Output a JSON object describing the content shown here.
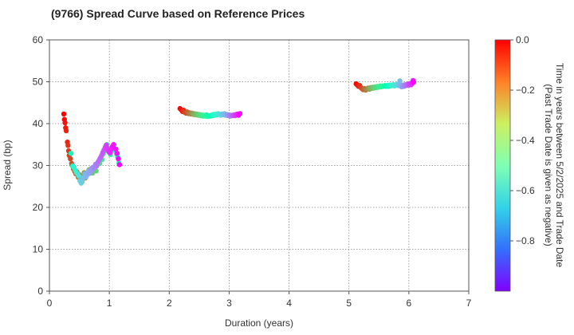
{
  "chart_data": {
    "type": "scatter",
    "title": "(9766)   Spread Curve based on Reference Prices",
    "xlabel": "Duration (years)",
    "ylabel": "Spread (bp)",
    "xlim": [
      0,
      7
    ],
    "ylim": [
      0,
      60
    ],
    "x_ticks": [
      "0",
      "1",
      "2",
      "3",
      "4",
      "5",
      "6",
      "7"
    ],
    "y_ticks": [
      "0",
      "10",
      "20",
      "30",
      "40",
      "50",
      "60"
    ],
    "grid": true,
    "colorbar": {
      "label_line1": "Time in years between 5/2/2025 and Trade Date",
      "label_line2": "(Past Trade Date is given as negative)",
      "range": [
        -1.0,
        0.0
      ],
      "ticks": [
        "0.0",
        "−0.2",
        "−0.4",
        "−0.6",
        "−0.8"
      ],
      "colormap": "rainbow"
    },
    "series": [
      {
        "points": [
          [
            0.24,
            42.3,
            0.0
          ],
          [
            0.25,
            41.0,
            -0.01
          ],
          [
            0.26,
            40.2,
            -0.02
          ],
          [
            0.27,
            39.0,
            -0.03
          ],
          [
            0.28,
            38.3,
            -0.04
          ],
          [
            0.3,
            35.6,
            -0.05
          ],
          [
            0.31,
            34.8,
            -0.06
          ],
          [
            0.32,
            33.5,
            -0.07
          ],
          [
            0.33,
            32.4,
            -0.08
          ],
          [
            0.35,
            31.6,
            -0.09
          ],
          [
            0.37,
            30.5,
            -0.1
          ],
          [
            0.38,
            30.0,
            -0.11
          ],
          [
            0.4,
            29.2,
            -0.12
          ],
          [
            0.42,
            28.6,
            -0.13
          ],
          [
            0.44,
            28.0,
            -0.14
          ],
          [
            0.46,
            28.5,
            -0.15
          ],
          [
            0.48,
            27.2,
            -0.16
          ],
          [
            0.5,
            27.8,
            -0.17
          ],
          [
            0.52,
            26.8,
            -0.18
          ],
          [
            0.54,
            26.0,
            -0.19
          ],
          [
            0.56,
            27.5,
            -0.2
          ],
          [
            0.58,
            28.3,
            -0.21
          ],
          [
            0.6,
            27.0,
            -0.22
          ],
          [
            0.62,
            27.6,
            -0.23
          ],
          [
            0.64,
            28.4,
            -0.24
          ],
          [
            0.66,
            29.0,
            -0.25
          ],
          [
            0.68,
            28.6,
            -0.26
          ],
          [
            0.7,
            29.3,
            -0.27
          ],
          [
            0.72,
            28.2,
            -0.28
          ],
          [
            0.74,
            29.0,
            -0.29
          ],
          [
            0.76,
            29.8,
            -0.3
          ],
          [
            0.78,
            28.7,
            -0.31
          ],
          [
            0.8,
            30.2,
            -0.32
          ],
          [
            0.82,
            31.0,
            -0.33
          ],
          [
            0.84,
            30.5,
            -0.34
          ],
          [
            0.86,
            32.0,
            -0.35
          ],
          [
            0.88,
            31.4,
            -0.36
          ],
          [
            0.9,
            32.8,
            -0.37
          ],
          [
            0.92,
            33.5,
            -0.38
          ],
          [
            0.94,
            34.6,
            -0.39
          ],
          [
            0.96,
            35.0,
            -0.4
          ],
          [
            0.98,
            33.8,
            -0.41
          ],
          [
            1.0,
            33.2,
            -0.42
          ],
          [
            1.02,
            32.6,
            -0.43
          ],
          [
            1.04,
            33.4,
            -0.44
          ],
          [
            1.06,
            34.2,
            -0.45
          ],
          [
            1.08,
            34.8,
            -0.46
          ],
          [
            1.1,
            33.6,
            -0.47
          ],
          [
            1.12,
            32.8,
            -0.48
          ],
          [
            1.14,
            32.0,
            -0.49
          ],
          [
            1.16,
            30.6,
            -0.5
          ],
          [
            0.36,
            32.9,
            -0.52
          ],
          [
            0.39,
            29.9,
            -0.55
          ],
          [
            0.41,
            29.5,
            -0.58
          ],
          [
            0.43,
            28.9,
            -0.6
          ],
          [
            0.45,
            28.3,
            -0.62
          ],
          [
            0.47,
            28.0,
            -0.64
          ],
          [
            0.49,
            27.5,
            -0.66
          ],
          [
            0.51,
            26.3,
            -0.68
          ],
          [
            0.53,
            25.8,
            -0.7
          ],
          [
            0.55,
            26.6,
            -0.72
          ],
          [
            0.57,
            27.2,
            -0.73
          ],
          [
            0.59,
            28.0,
            -0.74
          ],
          [
            0.61,
            27.3,
            -0.75
          ],
          [
            0.63,
            28.0,
            -0.76
          ],
          [
            0.65,
            28.6,
            -0.77
          ],
          [
            0.67,
            28.1,
            -0.78
          ],
          [
            0.69,
            29.2,
            -0.79
          ],
          [
            0.71,
            28.8,
            -0.8
          ],
          [
            0.73,
            29.6,
            -0.81
          ],
          [
            0.75,
            29.4,
            -0.82
          ],
          [
            0.77,
            30.3,
            -0.83
          ],
          [
            0.79,
            29.9,
            -0.84
          ],
          [
            0.81,
            30.8,
            -0.85
          ],
          [
            0.83,
            31.3,
            -0.86
          ],
          [
            0.85,
            31.8,
            -0.87
          ],
          [
            0.87,
            32.4,
            -0.88
          ],
          [
            0.89,
            33.1,
            -0.89
          ],
          [
            0.91,
            33.7,
            -0.9
          ],
          [
            0.93,
            34.3,
            -0.91
          ],
          [
            0.95,
            34.9,
            -0.92
          ],
          [
            0.97,
            34.0,
            -0.93
          ],
          [
            0.99,
            33.3,
            -0.94
          ],
          [
            1.01,
            33.0,
            -0.95
          ],
          [
            1.03,
            33.8,
            -0.96
          ],
          [
            1.05,
            34.5,
            -0.97
          ],
          [
            1.07,
            35.0,
            -0.98
          ],
          [
            1.11,
            33.9,
            -0.985
          ],
          [
            1.13,
            32.9,
            -0.99
          ],
          [
            1.15,
            31.6,
            -0.995
          ],
          [
            1.17,
            30.2,
            -1.0
          ]
        ]
      },
      {
        "points": [
          [
            2.18,
            43.6,
            0.0
          ],
          [
            2.2,
            43.3,
            -0.02
          ],
          [
            2.22,
            42.9,
            -0.04
          ],
          [
            2.24,
            43.2,
            -0.06
          ],
          [
            2.26,
            42.7,
            -0.08
          ],
          [
            2.28,
            42.5,
            -0.1
          ],
          [
            2.3,
            42.8,
            -0.12
          ],
          [
            2.32,
            42.4,
            -0.14
          ],
          [
            2.34,
            42.6,
            -0.16
          ],
          [
            2.36,
            42.3,
            -0.18
          ],
          [
            2.38,
            42.5,
            -0.2
          ],
          [
            2.4,
            42.2,
            -0.22
          ],
          [
            2.42,
            42.4,
            -0.24
          ],
          [
            2.44,
            42.1,
            -0.26
          ],
          [
            2.46,
            42.3,
            -0.28
          ],
          [
            2.48,
            42.0,
            -0.3
          ],
          [
            2.5,
            42.2,
            -0.32
          ],
          [
            2.52,
            41.9,
            -0.34
          ],
          [
            2.54,
            42.1,
            -0.36
          ],
          [
            2.56,
            41.8,
            -0.38
          ],
          [
            2.58,
            42.0,
            -0.4
          ],
          [
            2.6,
            41.8,
            -0.42
          ],
          [
            2.62,
            42.1,
            -0.44
          ],
          [
            2.64,
            41.7,
            -0.46
          ],
          [
            2.66,
            41.9,
            -0.48
          ],
          [
            2.68,
            41.8,
            -0.5
          ],
          [
            2.7,
            42.0,
            -0.52
          ],
          [
            2.72,
            41.9,
            -0.54
          ],
          [
            2.74,
            42.2,
            -0.56
          ],
          [
            2.76,
            42.0,
            -0.58
          ],
          [
            2.78,
            42.3,
            -0.6
          ],
          [
            2.8,
            42.1,
            -0.62
          ],
          [
            2.82,
            42.4,
            -0.64
          ],
          [
            2.84,
            42.2,
            -0.66
          ],
          [
            2.86,
            42.0,
            -0.68
          ],
          [
            2.88,
            42.3,
            -0.7
          ],
          [
            2.9,
            42.1,
            -0.72
          ],
          [
            2.92,
            42.4,
            -0.74
          ],
          [
            2.94,
            42.0,
            -0.76
          ],
          [
            2.96,
            42.2,
            -0.78
          ],
          [
            2.98,
            41.9,
            -0.8
          ],
          [
            3.0,
            42.1,
            -0.82
          ],
          [
            3.02,
            41.8,
            -0.84
          ],
          [
            3.04,
            42.0,
            -0.86
          ],
          [
            3.06,
            41.9,
            -0.88
          ],
          [
            3.08,
            42.1,
            -0.9
          ],
          [
            3.1,
            41.9,
            -0.92
          ],
          [
            3.12,
            42.2,
            -0.94
          ],
          [
            3.14,
            42.3,
            -0.96
          ],
          [
            3.16,
            42.0,
            -0.98
          ],
          [
            3.18,
            42.4,
            -1.0
          ]
        ]
      },
      {
        "points": [
          [
            5.12,
            49.5,
            0.0
          ],
          [
            5.14,
            49.2,
            -0.02
          ],
          [
            5.16,
            48.9,
            -0.04
          ],
          [
            5.18,
            49.1,
            -0.06
          ],
          [
            5.2,
            48.6,
            -0.08
          ],
          [
            5.22,
            48.3,
            -0.1
          ],
          [
            5.24,
            48.1,
            -0.12
          ],
          [
            5.26,
            48.4,
            -0.14
          ],
          [
            5.28,
            48.0,
            -0.16
          ],
          [
            5.3,
            48.3,
            -0.18
          ],
          [
            5.32,
            48.5,
            -0.2
          ],
          [
            5.34,
            48.2,
            -0.22
          ],
          [
            5.36,
            48.6,
            -0.24
          ],
          [
            5.38,
            48.4,
            -0.26
          ],
          [
            5.4,
            48.7,
            -0.28
          ],
          [
            5.42,
            48.5,
            -0.3
          ],
          [
            5.44,
            48.8,
            -0.32
          ],
          [
            5.46,
            48.6,
            -0.34
          ],
          [
            5.48,
            48.9,
            -0.36
          ],
          [
            5.5,
            48.7,
            -0.38
          ],
          [
            5.52,
            49.0,
            -0.4
          ],
          [
            5.54,
            48.8,
            -0.42
          ],
          [
            5.56,
            49.0,
            -0.44
          ],
          [
            5.58,
            48.9,
            -0.46
          ],
          [
            5.6,
            49.1,
            -0.48
          ],
          [
            5.62,
            48.9,
            -0.5
          ],
          [
            5.64,
            49.1,
            -0.52
          ],
          [
            5.66,
            48.9,
            -0.54
          ],
          [
            5.68,
            49.2,
            -0.56
          ],
          [
            5.7,
            49.0,
            -0.58
          ],
          [
            5.72,
            49.1,
            -0.6
          ],
          [
            5.74,
            49.3,
            -0.62
          ],
          [
            5.76,
            49.0,
            -0.64
          ],
          [
            5.78,
            49.2,
            -0.66
          ],
          [
            5.8,
            49.4,
            -0.68
          ],
          [
            5.82,
            49.1,
            -0.7
          ],
          [
            5.84,
            49.5,
            -0.72
          ],
          [
            5.85,
            50.2,
            -0.74
          ],
          [
            5.86,
            49.0,
            -0.76
          ],
          [
            5.88,
            48.8,
            -0.78
          ],
          [
            5.9,
            49.2,
            -0.8
          ],
          [
            5.92,
            48.9,
            -0.82
          ],
          [
            5.94,
            49.3,
            -0.84
          ],
          [
            5.96,
            49.1,
            -0.86
          ],
          [
            5.98,
            49.5,
            -0.88
          ],
          [
            6.0,
            49.2,
            -0.9
          ],
          [
            6.02,
            49.6,
            -0.92
          ],
          [
            6.04,
            49.3,
            -0.94
          ],
          [
            6.06,
            49.8,
            -0.96
          ],
          [
            6.07,
            50.3,
            -0.98
          ],
          [
            6.08,
            49.9,
            -1.0
          ]
        ]
      }
    ]
  }
}
